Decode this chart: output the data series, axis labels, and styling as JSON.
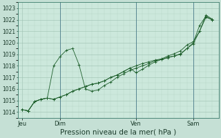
{
  "xlabel": "Pression niveau de la mer( hPa )",
  "bg_color": "#c5e0d5",
  "plot_bg_color": "#cce8dc",
  "grid_color_major": "#9dbfb0",
  "grid_color_minor": "#b5d5c8",
  "line_color": "#1a5c28",
  "ylim": [
    1013.5,
    1023.5
  ],
  "yticks": [
    1014,
    1015,
    1016,
    1017,
    1018,
    1019,
    1020,
    1021,
    1022,
    1023
  ],
  "xtick_labels": [
    "Jeu",
    "Dim",
    "Ven",
    "Sam"
  ],
  "vline_color": "#4a7a8a",
  "xlabel_fontsize": 7.5,
  "tick_fontsize": 5.5,
  "series1_x": [
    0,
    0.5,
    1,
    1.5,
    2,
    2.5,
    3,
    3.5,
    4,
    4.5,
    5,
    5.5,
    6,
    6.5,
    7,
    7.5,
    8,
    8.5,
    9,
    9.5,
    10,
    10.5,
    11,
    11.5,
    12,
    12.5,
    13,
    13.5,
    14,
    14.5,
    15
  ],
  "series1_y": [
    1014.2,
    1014.1,
    1014.9,
    1015.1,
    1015.2,
    1015.1,
    1015.3,
    1015.5,
    1015.8,
    1016.0,
    1016.2,
    1016.4,
    1016.5,
    1016.7,
    1017.0,
    1017.2,
    1017.5,
    1017.8,
    1018.0,
    1018.2,
    1018.35,
    1018.5,
    1018.6,
    1018.85,
    1019.05,
    1019.3,
    1019.8,
    1020.1,
    1021.0,
    1022.2,
    1022.0
  ],
  "series2_x": [
    0,
    0.5,
    1,
    1.5,
    2,
    2.5,
    3,
    3.5,
    4,
    4.5,
    5,
    5.5,
    6,
    6.5,
    7,
    7.5,
    8,
    8.5,
    9,
    9.5,
    10,
    10.5,
    11,
    11.5,
    12,
    12.5,
    13,
    13.5,
    14,
    14.5,
    15
  ],
  "series2_y": [
    1014.2,
    1014.1,
    1014.9,
    1015.1,
    1015.2,
    1018.0,
    1018.8,
    1019.35,
    1019.5,
    1018.1,
    1016.0,
    1015.8,
    1015.9,
    1016.3,
    1016.6,
    1017.0,
    1017.3,
    1017.6,
    1017.8,
    1018.0,
    1018.2,
    1018.45,
    1018.55,
    1018.7,
    1018.85,
    1019.0,
    1019.5,
    1020.0,
    1021.5,
    1022.3,
    1022.0
  ],
  "series3_x": [
    0,
    0.5,
    1,
    1.5,
    2,
    2.5,
    3,
    3.5,
    4,
    4.5,
    5,
    5.5,
    6,
    6.5,
    7,
    7.5,
    8,
    8.5,
    9,
    9.5,
    10,
    10.5,
    11,
    11.5,
    12,
    12.5,
    13,
    13.5,
    14,
    14.5,
    15
  ],
  "series3_y": [
    1014.2,
    1014.1,
    1014.9,
    1015.1,
    1015.2,
    1015.1,
    1015.3,
    1015.5,
    1015.8,
    1016.0,
    1016.2,
    1016.4,
    1016.5,
    1016.7,
    1017.0,
    1017.2,
    1017.5,
    1017.8,
    1017.4,
    1017.7,
    1018.05,
    1018.35,
    1018.55,
    1018.75,
    1018.85,
    1019.05,
    1019.5,
    1019.9,
    1021.0,
    1022.4,
    1022.05
  ],
  "vlines": [
    3,
    9,
    13.5
  ],
  "xtick_positions": [
    0,
    3,
    9,
    13.5
  ],
  "xlim": [
    -0.3,
    15.5
  ]
}
